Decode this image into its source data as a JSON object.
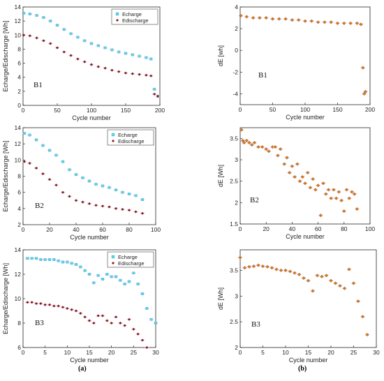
{
  "caption_a": "(a)",
  "caption_b": "(b)",
  "colors": {
    "echarge": "#5ed3e8",
    "edischarge": "#8b1a0e",
    "de": "#d97a1e",
    "de_edge": "#7a5a1a",
    "axis": "#262626",
    "grid_shadow": "#f2c6ec"
  },
  "chart_data": [
    {
      "id": "a_B1",
      "type": "scatter",
      "panel_label": "B1",
      "xlabel": "Cycle number",
      "ylabel": "Echarge/Edischarge [Wh]",
      "xlim": [
        0,
        200
      ],
      "ylim": [
        0,
        14
      ],
      "xticks": [
        0,
        50,
        100,
        150,
        200
      ],
      "yticks": [
        0,
        2,
        4,
        6,
        8,
        10,
        12,
        14
      ],
      "legend": "top-right",
      "series": [
        {
          "name": "Echarge",
          "marker": "square",
          "x": [
            1,
            10,
            20,
            30,
            40,
            50,
            60,
            70,
            80,
            90,
            100,
            110,
            120,
            130,
            140,
            150,
            160,
            170,
            180,
            187,
            192,
            197
          ],
          "y": [
            13.1,
            13.0,
            12.8,
            12.5,
            12.0,
            11.4,
            10.8,
            10.2,
            9.7,
            9.2,
            8.8,
            8.5,
            8.2,
            7.9,
            7.6,
            7.4,
            7.2,
            7.0,
            6.8,
            6.6,
            2.3,
            1.3
          ]
        },
        {
          "name": "Edischarge",
          "marker": "diamond",
          "x": [
            1,
            10,
            20,
            30,
            40,
            50,
            60,
            70,
            80,
            90,
            100,
            110,
            120,
            130,
            140,
            150,
            160,
            170,
            180,
            187,
            192,
            197
          ],
          "y": [
            10.0,
            9.9,
            9.6,
            9.2,
            8.8,
            8.2,
            7.6,
            7.1,
            6.6,
            6.2,
            5.8,
            5.5,
            5.3,
            5.0,
            4.8,
            4.6,
            4.5,
            4.4,
            4.3,
            4.2,
            1.6,
            1.3
          ]
        }
      ]
    },
    {
      "id": "a_B2",
      "type": "scatter",
      "panel_label": "B2",
      "xlabel": "Cycle number",
      "ylabel": "Echarge/Edischarge [Wh]",
      "xlim": [
        0,
        100
      ],
      "ylim": [
        2,
        14
      ],
      "xticks": [
        0,
        20,
        40,
        60,
        80,
        100
      ],
      "yticks": [
        2,
        4,
        6,
        8,
        10,
        12,
        14
      ],
      "legend": "top-right",
      "series": [
        {
          "name": "Echarge",
          "marker": "square",
          "x": [
            1,
            5,
            10,
            15,
            20,
            25,
            30,
            35,
            40,
            45,
            50,
            55,
            60,
            65,
            70,
            75,
            80,
            85,
            90
          ],
          "y": [
            13.3,
            13.1,
            12.5,
            11.8,
            11.2,
            10.6,
            9.8,
            8.8,
            8.2,
            7.8,
            7.4,
            7.0,
            6.8,
            6.6,
            6.3,
            6.0,
            5.8,
            5.6,
            5.1
          ]
        },
        {
          "name": "Edischarge",
          "marker": "diamond",
          "x": [
            1,
            5,
            10,
            15,
            20,
            25,
            30,
            35,
            40,
            45,
            50,
            55,
            60,
            65,
            70,
            75,
            80,
            85,
            90
          ],
          "y": [
            9.8,
            9.6,
            9.0,
            8.3,
            7.6,
            6.9,
            6.0,
            5.5,
            5.0,
            4.8,
            4.6,
            4.4,
            4.3,
            4.2,
            4.0,
            3.9,
            3.8,
            3.6,
            3.4
          ]
        }
      ]
    },
    {
      "id": "a_B3",
      "type": "scatter",
      "panel_label": "B3",
      "xlabel": "Cycle number",
      "ylabel": "Echarge/Edischarge [Wh]",
      "xlim": [
        0,
        30
      ],
      "ylim": [
        6,
        14
      ],
      "xticks": [
        0,
        5,
        10,
        15,
        20,
        25,
        30
      ],
      "yticks": [
        6,
        8,
        10,
        12,
        14
      ],
      "legend": "top-right",
      "series": [
        {
          "name": "Echarge",
          "marker": "square",
          "x": [
            1,
            2,
            3,
            4,
            5,
            6,
            7,
            8,
            9,
            10,
            11,
            12,
            13,
            14,
            15,
            16,
            17,
            18,
            19,
            20,
            21,
            22,
            23,
            24,
            25,
            26,
            27,
            28,
            29,
            30
          ],
          "y": [
            13.3,
            13.3,
            13.3,
            13.2,
            13.2,
            13.2,
            13.2,
            13.1,
            13.0,
            13.0,
            12.9,
            12.8,
            12.6,
            12.3,
            12.0,
            11.3,
            11.9,
            11.6,
            12.0,
            11.8,
            11.8,
            11.5,
            11.2,
            11.4,
            12.1,
            11.2,
            10.4,
            9.2,
            8.3,
            8.0
          ]
        },
        {
          "name": "Edischarge",
          "marker": "diamond",
          "x": [
            1,
            2,
            3,
            4,
            5,
            6,
            7,
            8,
            9,
            10,
            11,
            12,
            13,
            14,
            15,
            16,
            17,
            18,
            19,
            20,
            21,
            22,
            23,
            24,
            25,
            26,
            27,
            28
          ],
          "y": [
            9.7,
            9.7,
            9.6,
            9.6,
            9.5,
            9.5,
            9.4,
            9.4,
            9.3,
            9.2,
            9.1,
            9.0,
            8.8,
            8.5,
            8.2,
            8.0,
            8.6,
            8.6,
            8.2,
            8.0,
            8.5,
            8.0,
            7.8,
            8.3,
            7.5,
            7.1,
            6.6,
            6.0
          ]
        }
      ]
    },
    {
      "id": "b_B1",
      "type": "scatter",
      "panel_label": "B1",
      "xlabel": "Cycle number",
      "ylabel": "dE [wh]",
      "xlim": [
        0,
        200
      ],
      "ylim": [
        -5,
        4
      ],
      "xticks": [
        0,
        50,
        100,
        150,
        200
      ],
      "yticks": [
        -4,
        -2,
        0,
        2,
        4
      ],
      "series": [
        {
          "marker": "diamond",
          "x": [
            1,
            10,
            20,
            30,
            40,
            50,
            60,
            70,
            80,
            90,
            100,
            110,
            120,
            130,
            140,
            150,
            160,
            170,
            180,
            186,
            189,
            191,
            193
          ],
          "y": [
            3.2,
            3.1,
            3.0,
            3.0,
            3.0,
            2.9,
            2.9,
            2.9,
            2.8,
            2.8,
            2.7,
            2.7,
            2.6,
            2.6,
            2.6,
            2.5,
            2.5,
            2.5,
            2.5,
            2.4,
            -1.6,
            -4.0,
            -3.8
          ]
        }
      ]
    },
    {
      "id": "b_B2",
      "type": "scatter",
      "panel_label": "B2",
      "xlabel": "Cycle number",
      "ylabel": "dE [Wh]",
      "xlim": [
        0,
        100
      ],
      "ylim": [
        1.5,
        3.75
      ],
      "xticks": [
        0,
        20,
        40,
        60,
        80,
        100
      ],
      "yticks": [
        1.5,
        2,
        2.5,
        3,
        3.5
      ],
      "series": [
        {
          "marker": "diamond",
          "x": [
            1,
            2,
            3,
            5,
            7,
            9,
            11,
            14,
            17,
            20,
            22,
            25,
            27,
            29,
            31,
            34,
            36,
            38,
            40,
            42,
            44,
            46,
            48,
            50,
            52,
            54,
            56,
            58,
            60,
            62,
            64,
            66,
            68,
            70,
            72,
            74,
            76,
            78,
            80,
            82,
            84,
            86,
            88,
            90
          ],
          "y": [
            3.7,
            3.45,
            3.4,
            3.45,
            3.4,
            3.35,
            3.4,
            3.3,
            3.3,
            3.25,
            3.2,
            3.3,
            3.3,
            3.1,
            3.25,
            2.9,
            3.05,
            2.7,
            2.85,
            2.6,
            2.9,
            2.5,
            2.6,
            2.45,
            2.7,
            2.35,
            2.55,
            2.3,
            2.4,
            1.7,
            2.45,
            2.2,
            2.3,
            2.1,
            2.3,
            2.1,
            2.25,
            2.05,
            1.8,
            2.3,
            2.1,
            2.25,
            2.2,
            1.85
          ]
        }
      ]
    },
    {
      "id": "b_B3",
      "type": "scatter",
      "panel_label": "B3",
      "xlabel": "Cycle number",
      "ylabel": "dE [Wh]",
      "xlim": [
        0,
        30
      ],
      "ylim": [
        2,
        3.9
      ],
      "xticks": [
        0,
        5,
        10,
        15,
        20,
        25,
        30
      ],
      "yticks": [
        2,
        2.5,
        3,
        3.5
      ],
      "series": [
        {
          "marker": "diamond",
          "x": [
            0,
            1,
            2,
            3,
            4,
            5,
            6,
            7,
            8,
            9,
            10,
            11,
            12,
            13,
            14,
            15,
            16,
            17,
            18,
            19,
            20,
            21,
            22,
            23,
            24,
            25,
            26,
            27,
            28
          ],
          "y": [
            3.75,
            3.55,
            3.57,
            3.58,
            3.6,
            3.58,
            3.57,
            3.55,
            3.52,
            3.5,
            3.5,
            3.48,
            3.45,
            3.42,
            3.35,
            3.3,
            3.1,
            3.4,
            3.38,
            3.4,
            3.3,
            3.25,
            3.2,
            3.15,
            3.52,
            3.25,
            2.9,
            2.6,
            2.25
          ]
        }
      ]
    }
  ]
}
